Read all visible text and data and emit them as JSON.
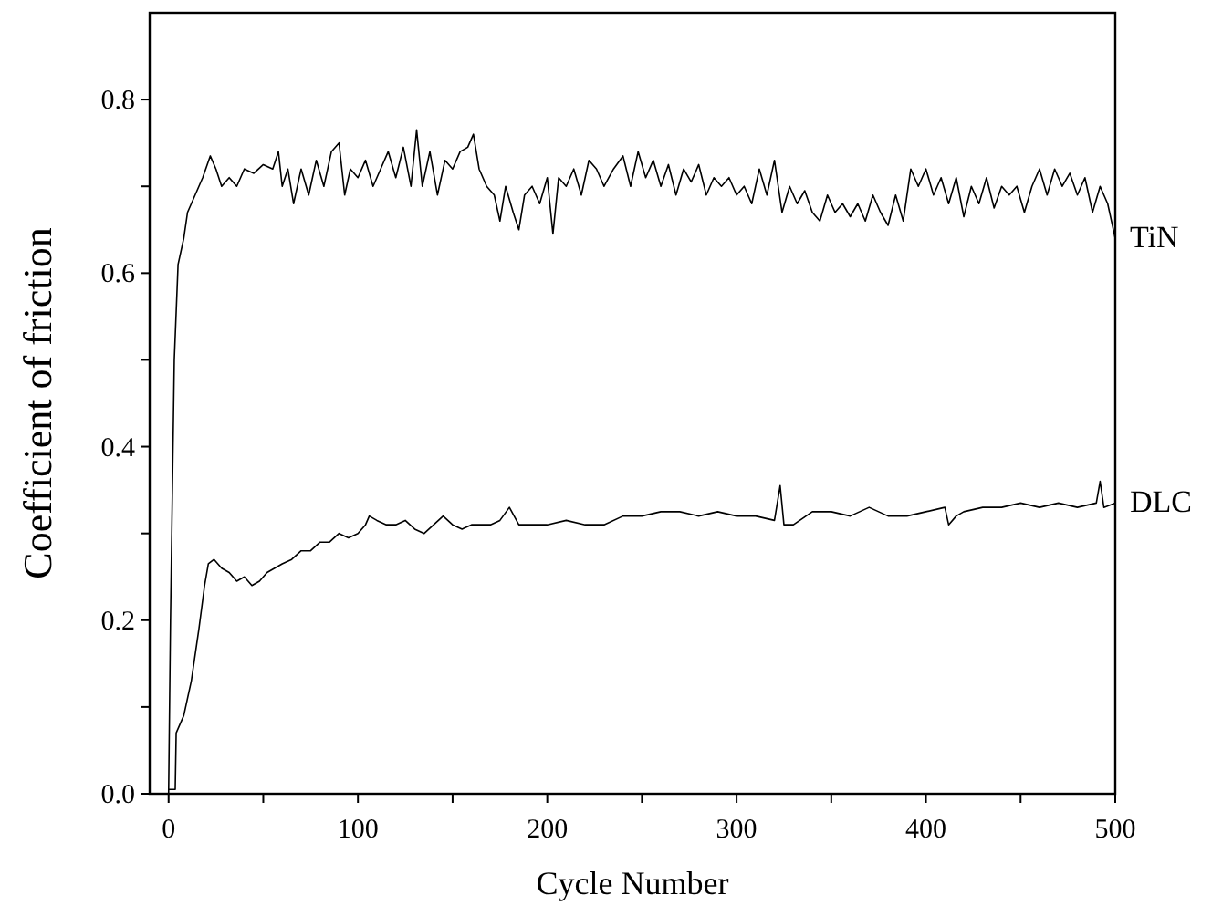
{
  "chart_data": {
    "type": "line",
    "xlabel": "Cycle Number",
    "ylabel": "Coefficient of friction",
    "xlim": [
      -10,
      500
    ],
    "ylim": [
      0,
      0.9
    ],
    "xticks": [
      0,
      {
        "value": 50,
        "label": null
      },
      100,
      {
        "value": 150,
        "label": null
      },
      200,
      {
        "value": 250,
        "label": null
      },
      300,
      {
        "value": 350,
        "label": null
      },
      400,
      {
        "value": 450,
        "label": null
      },
      500
    ],
    "yticks": [
      {
        "value": 0,
        "label": "0.0"
      },
      {
        "value": 0.1,
        "label": null
      },
      0.2,
      {
        "value": 0.3,
        "label": null
      },
      0.4,
      {
        "value": 0.5,
        "label": null
      },
      0.6,
      {
        "value": 0.7,
        "label": null
      },
      0.8
    ],
    "grid": false,
    "legend": false,
    "series": [
      {
        "name": "TiN",
        "color": "#000000",
        "x": [
          0,
          1,
          3,
          5,
          8,
          10,
          14,
          18,
          22,
          25,
          28,
          32,
          36,
          40,
          45,
          50,
          55,
          58,
          60,
          63,
          66,
          70,
          74,
          78,
          82,
          86,
          90,
          93,
          96,
          100,
          104,
          108,
          112,
          116,
          120,
          124,
          128,
          131,
          134,
          138,
          142,
          146,
          150,
          154,
          158,
          161,
          164,
          168,
          172,
          175,
          178,
          182,
          185,
          188,
          192,
          196,
          200,
          203,
          206,
          210,
          214,
          218,
          222,
          226,
          230,
          235,
          240,
          244,
          248,
          252,
          256,
          260,
          264,
          268,
          272,
          276,
          280,
          284,
          288,
          292,
          296,
          300,
          304,
          308,
          312,
          316,
          320,
          324,
          328,
          332,
          336,
          340,
          344,
          348,
          352,
          356,
          360,
          364,
          368,
          372,
          376,
          380,
          384,
          388,
          392,
          396,
          400,
          404,
          408,
          412,
          416,
          420,
          424,
          428,
          432,
          436,
          440,
          444,
          448,
          452,
          456,
          460,
          464,
          468,
          472,
          476,
          480,
          484,
          488,
          492,
          496,
          500
        ],
        "values": [
          0.0,
          0.2,
          0.5,
          0.61,
          0.64,
          0.67,
          0.69,
          0.71,
          0.735,
          0.72,
          0.7,
          0.71,
          0.7,
          0.72,
          0.715,
          0.725,
          0.72,
          0.74,
          0.7,
          0.72,
          0.68,
          0.72,
          0.69,
          0.73,
          0.7,
          0.74,
          0.75,
          0.69,
          0.72,
          0.71,
          0.73,
          0.7,
          0.72,
          0.74,
          0.71,
          0.745,
          0.7,
          0.765,
          0.7,
          0.74,
          0.69,
          0.73,
          0.72,
          0.74,
          0.745,
          0.76,
          0.72,
          0.7,
          0.69,
          0.66,
          0.7,
          0.67,
          0.65,
          0.69,
          0.7,
          0.68,
          0.71,
          0.645,
          0.71,
          0.7,
          0.72,
          0.69,
          0.73,
          0.72,
          0.7,
          0.72,
          0.735,
          0.7,
          0.74,
          0.71,
          0.73,
          0.7,
          0.725,
          0.69,
          0.72,
          0.705,
          0.725,
          0.69,
          0.71,
          0.7,
          0.71,
          0.69,
          0.7,
          0.68,
          0.72,
          0.69,
          0.73,
          0.67,
          0.7,
          0.68,
          0.695,
          0.67,
          0.66,
          0.69,
          0.67,
          0.68,
          0.665,
          0.68,
          0.66,
          0.69,
          0.67,
          0.655,
          0.69,
          0.66,
          0.72,
          0.7,
          0.72,
          0.69,
          0.71,
          0.68,
          0.71,
          0.665,
          0.7,
          0.68,
          0.71,
          0.675,
          0.7,
          0.69,
          0.7,
          0.67,
          0.7,
          0.72,
          0.69,
          0.72,
          0.7,
          0.715,
          0.69,
          0.71,
          0.67,
          0.7,
          0.68,
          0.64
        ]
      },
      {
        "name": "DLC",
        "color": "#000000",
        "x": [
          0,
          3.5,
          4,
          8,
          12,
          16,
          19,
          21,
          24,
          28,
          32,
          36,
          40,
          44,
          48,
          52,
          56,
          60,
          65,
          70,
          75,
          80,
          85,
          90,
          95,
          100,
          104,
          106,
          110,
          115,
          120,
          125,
          130,
          135,
          140,
          145,
          150,
          155,
          160,
          170,
          175,
          180,
          185,
          190,
          200,
          210,
          220,
          230,
          240,
          250,
          260,
          270,
          280,
          290,
          300,
          310,
          320,
          323,
          325,
          330,
          340,
          350,
          360,
          370,
          380,
          390,
          400,
          410,
          412,
          416,
          420,
          430,
          440,
          450,
          460,
          470,
          480,
          490,
          492,
          494,
          500
        ],
        "values": [
          0.005,
          0.005,
          0.07,
          0.09,
          0.13,
          0.19,
          0.24,
          0.265,
          0.27,
          0.26,
          0.255,
          0.245,
          0.25,
          0.24,
          0.245,
          0.255,
          0.26,
          0.265,
          0.27,
          0.28,
          0.28,
          0.29,
          0.29,
          0.3,
          0.295,
          0.3,
          0.31,
          0.32,
          0.315,
          0.31,
          0.31,
          0.315,
          0.305,
          0.3,
          0.31,
          0.32,
          0.31,
          0.305,
          0.31,
          0.31,
          0.315,
          0.33,
          0.31,
          0.31,
          0.31,
          0.315,
          0.31,
          0.31,
          0.32,
          0.32,
          0.325,
          0.325,
          0.32,
          0.325,
          0.32,
          0.32,
          0.315,
          0.355,
          0.31,
          0.31,
          0.325,
          0.325,
          0.32,
          0.33,
          0.32,
          0.32,
          0.325,
          0.33,
          0.31,
          0.32,
          0.325,
          0.33,
          0.33,
          0.335,
          0.33,
          0.335,
          0.33,
          0.335,
          0.36,
          0.33,
          0.335
        ]
      }
    ]
  }
}
